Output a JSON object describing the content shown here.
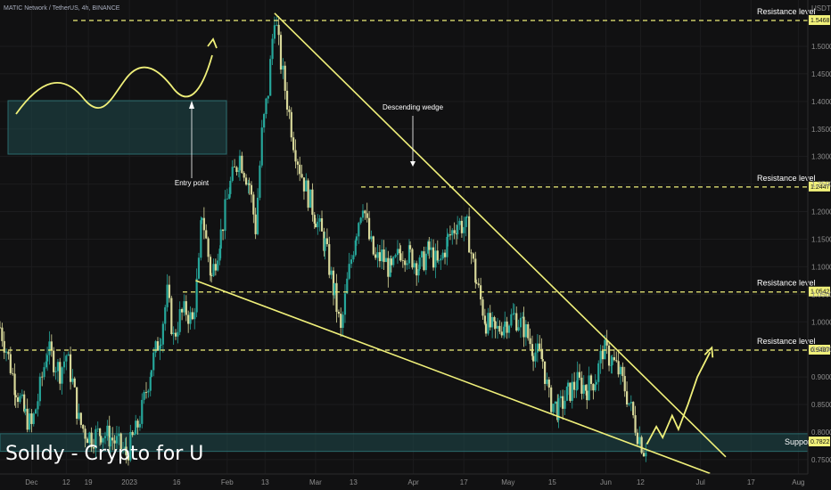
{
  "header": {
    "title": "MATIC Network / TetherUS, 4h, BINANCE",
    "currency": "USDT"
  },
  "watermark": "Solldy - Crypto for U",
  "colors": {
    "background": "#111112",
    "up": "#26a69a",
    "down": "#d8d89a",
    "line": "#f0f07a",
    "zone": "#1f4a4c"
  },
  "chart_data": {
    "type": "candlestick",
    "symbol": "MATIC/USDT",
    "timeframe": "4h",
    "exchange": "BINANCE",
    "y_ticks": [
      0.75,
      0.8,
      0.85,
      0.9,
      0.95,
      1.0,
      1.05,
      1.1,
      1.15,
      1.2,
      1.25,
      1.3,
      1.35,
      1.4,
      1.45,
      1.5
    ],
    "x_ticks": [
      "Dec",
      "12",
      "19",
      "2023",
      "16",
      "Feb",
      "13",
      "Mar",
      "13",
      "Apr",
      "17",
      "May",
      "15",
      "Jun",
      "12",
      "Jul",
      "17",
      "Aug"
    ],
    "x_tick_days": [
      0,
      11,
      18,
      31,
      46,
      62,
      74,
      90,
      102,
      121,
      137,
      151,
      165,
      182,
      193,
      212,
      228,
      243
    ],
    "ylim": [
      0.724,
      1.584
    ],
    "xlim_days": [
      -10,
      246
    ],
    "price_path": [
      [
        -10,
        0.99
      ],
      [
        -8,
        0.95
      ],
      [
        -5,
        0.88
      ],
      [
        -2,
        0.83
      ],
      [
        0,
        0.81
      ],
      [
        2,
        0.86
      ],
      [
        4,
        0.92
      ],
      [
        5,
        0.95
      ],
      [
        7,
        0.93
      ],
      [
        9,
        0.91
      ],
      [
        11,
        0.94
      ],
      [
        13,
        0.89
      ],
      [
        15,
        0.82
      ],
      [
        17,
        0.8
      ],
      [
        19,
        0.79
      ],
      [
        22,
        0.8
      ],
      [
        25,
        0.79
      ],
      [
        27,
        0.78
      ],
      [
        30,
        0.76
      ],
      [
        33,
        0.8
      ],
      [
        35,
        0.84
      ],
      [
        38,
        0.92
      ],
      [
        41,
        0.98
      ],
      [
        43,
        1.05
      ],
      [
        45,
        0.97
      ],
      [
        47,
        1.01
      ],
      [
        49,
        1.02
      ],
      [
        51,
        1.0
      ],
      [
        53,
        1.1
      ],
      [
        54,
        1.2
      ],
      [
        57,
        1.08
      ],
      [
        60,
        1.16
      ],
      [
        63,
        1.25
      ],
      [
        66,
        1.3
      ],
      [
        69,
        1.25
      ],
      [
        71,
        1.17
      ],
      [
        73,
        1.34
      ],
      [
        75,
        1.42
      ],
      [
        77,
        1.56
      ],
      [
        79,
        1.47
      ],
      [
        81,
        1.4
      ],
      [
        83,
        1.33
      ],
      [
        85,
        1.28
      ],
      [
        87,
        1.24
      ],
      [
        90,
        1.19
      ],
      [
        93,
        1.14
      ],
      [
        96,
        1.05
      ],
      [
        98,
        0.98
      ],
      [
        100,
        1.07
      ],
      [
        103,
        1.17
      ],
      [
        105,
        1.22
      ],
      [
        107,
        1.15
      ],
      [
        109,
        1.11
      ],
      [
        111,
        1.12
      ],
      [
        114,
        1.09
      ],
      [
        117,
        1.13
      ],
      [
        120,
        1.12
      ],
      [
        123,
        1.1
      ],
      [
        126,
        1.13
      ],
      [
        129,
        1.1
      ],
      [
        132,
        1.15
      ],
      [
        135,
        1.18
      ],
      [
        138,
        1.17
      ],
      [
        141,
        1.07
      ],
      [
        144,
        1.0
      ],
      [
        147,
        0.98
      ],
      [
        150,
        1.0
      ],
      [
        153,
        1.01
      ],
      [
        156,
        0.99
      ],
      [
        159,
        0.95
      ],
      [
        162,
        0.93
      ],
      [
        164,
        0.86
      ],
      [
        167,
        0.84
      ],
      [
        170,
        0.87
      ],
      [
        173,
        0.89
      ],
      [
        176,
        0.88
      ],
      [
        179,
        0.9
      ],
      [
        181,
        0.95
      ],
      [
        184,
        0.93
      ],
      [
        186,
        0.91
      ],
      [
        188,
        0.88
      ],
      [
        190,
        0.84
      ],
      [
        192,
        0.8
      ],
      [
        194,
        0.77
      ],
      [
        195,
        0.78
      ]
    ],
    "levels": [
      {
        "price": 1.5468,
        "label": "Resistance level",
        "tag": "1.5468"
      },
      {
        "price": 1.2447,
        "label": "Resistance level",
        "tag": "1.2447"
      },
      {
        "price": 1.0542,
        "label": "Resistance level",
        "tag": "1.0542"
      },
      {
        "price": 0.9487,
        "label": "Resistance level",
        "tag": "0.9487"
      }
    ],
    "support": {
      "label": "Support",
      "tag": "0.7822",
      "low": 0.765,
      "high": 0.797
    },
    "wedge": {
      "label": "Descending wedge",
      "upper": [
        [
          77,
          1.56
        ],
        [
          220,
          0.755
        ]
      ],
      "lower": [
        [
          52,
          1.075
        ],
        [
          215,
          0.725
        ]
      ]
    },
    "projection": [
      [
        195,
        0.778
      ],
      [
        198,
        0.81
      ],
      [
        200,
        0.79
      ],
      [
        203,
        0.83
      ],
      [
        205,
        0.805
      ],
      [
        208,
        0.85
      ],
      [
        211,
        0.9
      ],
      [
        215,
        0.945
      ]
    ],
    "entry_annotation": {
      "label": "Entry point"
    }
  }
}
